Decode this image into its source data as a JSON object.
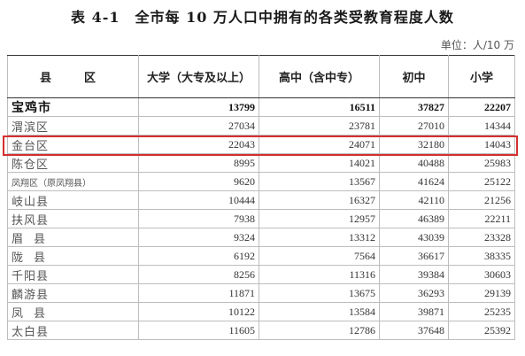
{
  "title": "表 4-1　全市每 10 万人口中拥有的各类受教育程度人数",
  "unit": "单位：人/10 万",
  "headers": [
    "县　区",
    "大学（大专及以上）",
    "高中（含中专）",
    "初中",
    "小学"
  ],
  "rows": [
    {
      "name": "宝鸡市",
      "values": [
        "13799",
        "16511",
        "37827",
        "22207"
      ]
    },
    {
      "name": "渭滨区",
      "values": [
        "27034",
        "23781",
        "27010",
        "14344"
      ]
    },
    {
      "name": "金台区",
      "values": [
        "22043",
        "24071",
        "32180",
        "14043"
      ]
    },
    {
      "name": "陈仓区",
      "values": [
        "8995",
        "14021",
        "40488",
        "25983"
      ]
    },
    {
      "name": "凤翔区（原凤翔县）",
      "values": [
        "9620",
        "13567",
        "41624",
        "25122"
      ]
    },
    {
      "name": "岐山县",
      "values": [
        "10444",
        "16327",
        "42110",
        "21256"
      ]
    },
    {
      "name": "扶风县",
      "values": [
        "7938",
        "12957",
        "46389",
        "22211"
      ]
    },
    {
      "name": "眉县",
      "values": [
        "9324",
        "13312",
        "43039",
        "23328"
      ]
    },
    {
      "name": "陇县",
      "values": [
        "6192",
        "7564",
        "36617",
        "38335"
      ]
    },
    {
      "name": "千阳县",
      "values": [
        "8256",
        "11316",
        "39384",
        "30603"
      ]
    },
    {
      "name": "麟游县",
      "values": [
        "11871",
        "13675",
        "36293",
        "29139"
      ]
    },
    {
      "name": "凤县",
      "values": [
        "10122",
        "13584",
        "39871",
        "25235"
      ]
    },
    {
      "name": "太白县",
      "values": [
        "11605",
        "12786",
        "37648",
        "25392"
      ]
    }
  ],
  "highlight_color": "#d32f2f"
}
